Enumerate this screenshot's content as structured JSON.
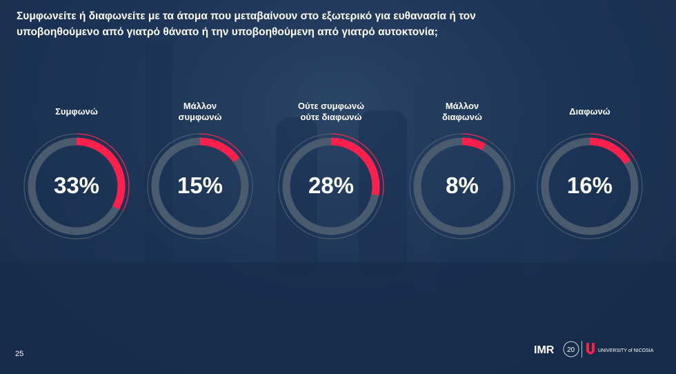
{
  "title": "Συμφωνείτε ή διαφωνείτε με τα άτομα που μεταβαίνουν στο εξωτερικό για ευθανασία ή τον\nυποβοηθούμενο από γιατρό θάνατο ή την υποβοηθούμενη από γιατρό αυτοκτονία;",
  "page_number": "25",
  "logos": {
    "imr": "IMR",
    "anniversary": "20",
    "university": "UNIVERSITY of NICOSIA"
  },
  "colors": {
    "accent": "#ff1f4b",
    "track": "#4b5b6e",
    "background": "#1d3556",
    "text": "#ffffff"
  },
  "chart_data": {
    "type": "pie",
    "title": "Συμφωνείτε ή διαφωνείτε με τα άτομα που μεταβαίνουν στο εξωτερικό για ευθανασία ή τον υποβοηθούμενο από γιατρό θάνατο ή την υποβοηθούμενη από γιατρό αυτοκτονία;",
    "categories": [
      "Συμφωνώ",
      "Μάλλον\nσυμφωνώ",
      "Ούτε συμφωνώ\nούτε διαφωνώ",
      "Μάλλον\nδιαφωνώ",
      "Διαφωνώ"
    ],
    "values": [
      33,
      15,
      28,
      8,
      16
    ],
    "labels": [
      "33%",
      "15%",
      "28%",
      "8%",
      "16%"
    ],
    "unit": "%"
  }
}
